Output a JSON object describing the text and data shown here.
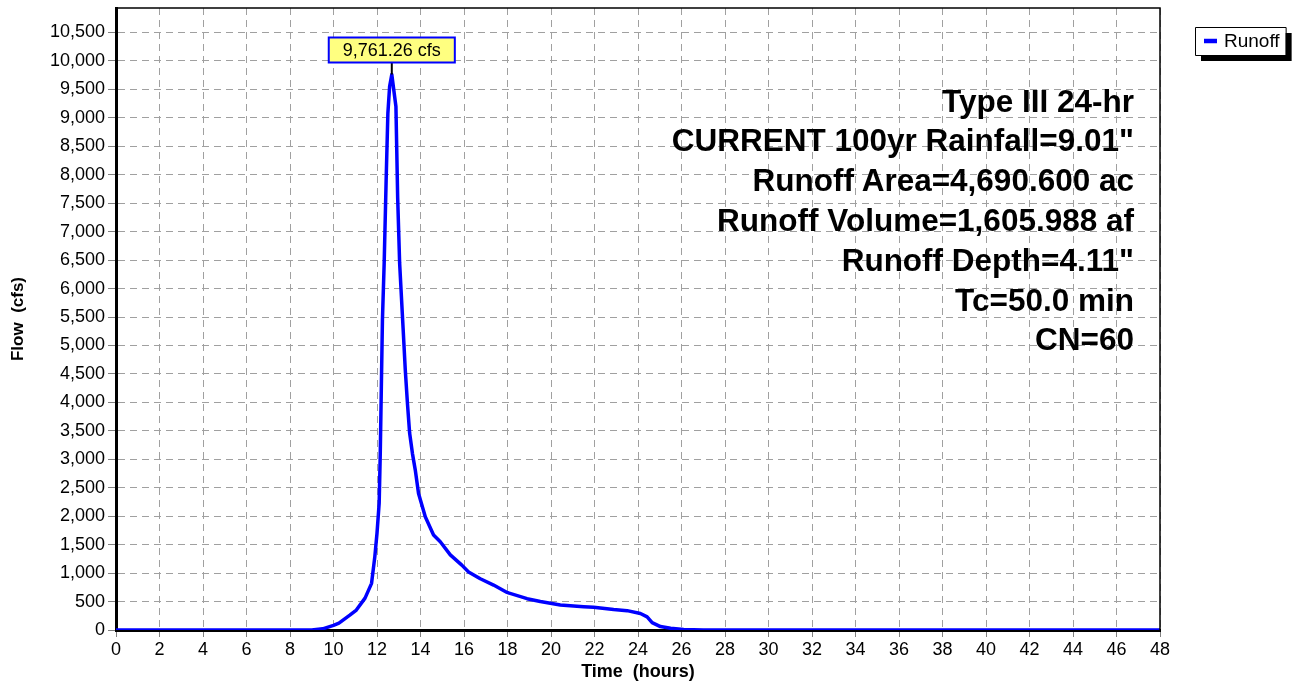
{
  "chart_data": {
    "type": "line",
    "xlabel": "Time  (hours)",
    "ylabel": "Flow  (cfs)",
    "x": [
      0,
      8,
      9,
      9.5,
      10,
      10.25,
      10.75,
      11.05,
      11.45,
      11.75,
      11.9,
      12,
      12.1,
      12.15,
      12.2,
      12.25,
      12.33,
      12.42,
      12.5,
      12.58,
      12.68,
      12.87,
      12.95,
      13.04,
      13.2,
      13.3,
      13.4,
      13.5,
      13.63,
      13.76,
      13.91,
      14.22,
      14.6,
      14.91,
      15.37,
      15.9,
      16.21,
      16.75,
      17.36,
      17.98,
      18.9,
      19.51,
      20.43,
      21.5,
      21.96,
      22.88,
      23.5,
      24.11,
      24.42,
      24.65,
      25.03,
      25.5,
      26.1,
      27,
      48
    ],
    "series": [
      {
        "name": "Runoff",
        "color": "#0000ff",
        "values": [
          0,
          0,
          0,
          20,
          80,
          120,
          260,
          350,
          560,
          820,
          1290,
          1700,
          2230,
          3100,
          4280,
          5450,
          6450,
          7900,
          9080,
          9550,
          9761.26,
          9200,
          7600,
          6450,
          5300,
          4570,
          3980,
          3460,
          3100,
          2810,
          2400,
          1990,
          1670,
          1550,
          1320,
          1140,
          1020,
          900,
          790,
          660,
          550,
          500,
          440,
          410,
          400,
          360,
          340,
          290,
          230,
          130,
          60,
          30,
          10,
          0,
          0
        ]
      }
    ],
    "xlim": [
      0,
      48
    ],
    "xticks": [
      0,
      2,
      4,
      6,
      8,
      10,
      12,
      14,
      16,
      18,
      20,
      22,
      24,
      26,
      28,
      30,
      32,
      34,
      36,
      38,
      40,
      42,
      44,
      46,
      48
    ],
    "ylim": [
      0,
      10930
    ],
    "yticks": [
      0,
      500,
      {
        "value": 1000,
        "label": "1,000"
      },
      {
        "value": 1500,
        "label": "1,500"
      },
      {
        "value": 2000,
        "label": "2,000"
      },
      {
        "value": 2500,
        "label": "2,500"
      },
      {
        "value": 3000,
        "label": "3,000"
      },
      {
        "value": 3500,
        "label": "3,500"
      },
      {
        "value": 4000,
        "label": "4,000"
      },
      {
        "value": 4500,
        "label": "4,500"
      },
      {
        "value": 5000,
        "label": "5,000"
      },
      {
        "value": 5500,
        "label": "5,500"
      },
      {
        "value": 6000,
        "label": "6,000"
      },
      {
        "value": 6500,
        "label": "6,500"
      },
      {
        "value": 7000,
        "label": "7,000"
      },
      {
        "value": 7500,
        "label": "7,500"
      },
      {
        "value": 8000,
        "label": "8,000"
      },
      {
        "value": 8500,
        "label": "8,500"
      },
      {
        "value": 9000,
        "label": "9,000"
      },
      {
        "value": 9500,
        "label": "9,500"
      },
      {
        "value": 10000,
        "label": "10,000"
      },
      {
        "value": 10500,
        "label": "10,500"
      }
    ],
    "grid": true,
    "legend": "top right",
    "marker": "none",
    "line_style": "solid",
    "annotations": [
      {
        "text": "9,761.26 cfs",
        "x": 12.68,
        "y": 9761.26
      },
      "Type III 24-hr",
      "CURRENT 100yr Rainfall=9.01\"",
      "Runoff Area=4,690.600 ac",
      "Runoff Volume=1,605.988 af",
      "Runoff Depth=4.11\"",
      "Tc=50.0 min",
      "CN=60"
    ]
  }
}
